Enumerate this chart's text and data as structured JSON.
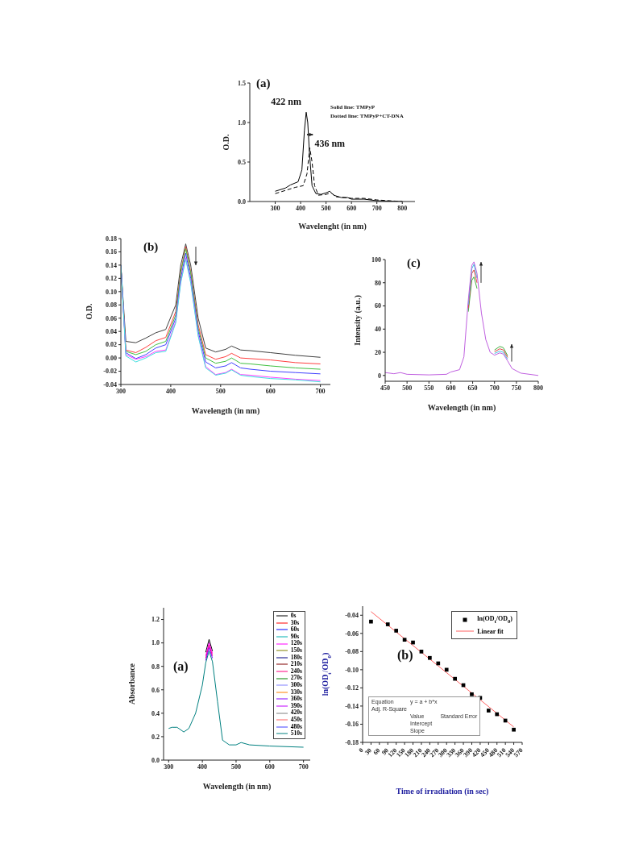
{
  "chart_data": [
    {
      "type": "line",
      "xlabel": "Wavelenght (in nm)",
      "ylabel": "O.D.",
      "xlim": [
        200,
        850
      ],
      "xticks": [
        300,
        400,
        500,
        600,
        700,
        800
      ],
      "ylim": [
        0,
        1.5
      ],
      "yticks": [
        {
          "value": 0,
          "label": "0.0"
        },
        0.5,
        {
          "value": 1,
          "label": "1.0"
        },
        1.5
      ],
      "annotations": [
        "(a)",
        {
          "text": "422 nm",
          "x": 422,
          "y": 1.13
        },
        {
          "text": "436 nm",
          "x": 436,
          "y": 0.68
        },
        "Solid line:  TMPyP",
        "Dotted line:  TMPyP+CT-DNA"
      ],
      "series": [
        {
          "color": "#000000",
          "line_style": "solid",
          "x": [
            300,
            340,
            360,
            390,
            405,
            415,
            422,
            428,
            435,
            445,
            460,
            480,
            500,
            515,
            530,
            560,
            585,
            600,
            650,
            700,
            800
          ],
          "values": [
            0.13,
            0.17,
            0.21,
            0.25,
            0.4,
            0.9,
            1.13,
            1.0,
            0.6,
            0.2,
            0.1,
            0.09,
            0.11,
            0.13,
            0.08,
            0.05,
            0.05,
            0.03,
            0.03,
            0.01,
            0.0
          ]
        },
        {
          "color": "#000000",
          "line_style": "dashed",
          "x": [
            300,
            340,
            380,
            410,
            425,
            436,
            445,
            455,
            470,
            500,
            520,
            540,
            600,
            650,
            700,
            800
          ],
          "values": [
            0.1,
            0.14,
            0.18,
            0.2,
            0.35,
            0.68,
            0.5,
            0.2,
            0.08,
            0.09,
            0.11,
            0.06,
            0.04,
            0.04,
            0.02,
            0.0
          ]
        }
      ]
    },
    {
      "type": "line",
      "xlabel": "Wavelength (in nm)",
      "ylabel": "O.D.",
      "xlim": [
        300,
        720
      ],
      "xticks": [
        300,
        400,
        500,
        600,
        700
      ],
      "ylim": [
        -0.04,
        0.18
      ],
      "yticks": [
        -0.04,
        -0.02,
        {
          "value": 0,
          "label": "0.00"
        },
        0.02,
        0.04,
        0.06,
        0.08,
        {
          "value": 0.1,
          "label": "0.10"
        },
        0.12,
        0.14,
        0.16,
        0.18
      ],
      "annotations": [
        "(b)"
      ],
      "x": [
        300,
        310,
        330,
        350,
        370,
        390,
        410,
        420,
        430,
        440,
        455,
        470,
        490,
        510,
        522,
        540,
        560,
        600,
        650,
        700
      ],
      "series": [
        {
          "color": "#404040",
          "values": [
            0.14,
            0.025,
            0.023,
            0.03,
            0.038,
            0.043,
            0.08,
            0.14,
            0.172,
            0.14,
            0.06,
            0.015,
            0.009,
            0.013,
            0.018,
            0.012,
            0.011,
            0.008,
            0.004,
            0.001
          ]
        },
        {
          "color": "#ff4040",
          "values": [
            0.14,
            0.012,
            0.008,
            0.016,
            0.026,
            0.031,
            0.07,
            0.13,
            0.168,
            0.13,
            0.05,
            0.005,
            -0.002,
            0.002,
            0.007,
            0.0,
            -0.001,
            -0.003,
            -0.007,
            -0.009
          ]
        },
        {
          "color": "#40c040",
          "values": [
            0.14,
            0.01,
            0.005,
            0.01,
            0.02,
            0.025,
            0.065,
            0.128,
            0.165,
            0.128,
            0.045,
            0.0,
            -0.008,
            -0.005,
            0.0,
            -0.008,
            -0.009,
            -0.012,
            -0.015,
            -0.017
          ]
        },
        {
          "color": "#4040ff",
          "values": [
            0.14,
            0.008,
            -0.001,
            0.005,
            0.015,
            0.02,
            0.06,
            0.12,
            0.158,
            0.12,
            0.04,
            -0.006,
            -0.015,
            -0.012,
            -0.007,
            -0.015,
            -0.017,
            -0.02,
            -0.022,
            -0.024
          ]
        },
        {
          "color": "#ff40ff",
          "values": [
            0.14,
            0.005,
            -0.002,
            0.002,
            0.01,
            0.012,
            0.055,
            0.115,
            0.151,
            0.115,
            0.035,
            -0.013,
            -0.025,
            -0.022,
            -0.017,
            -0.025,
            -0.026,
            -0.029,
            -0.032,
            -0.034
          ]
        },
        {
          "color": "#40e0e0",
          "values": [
            0.14,
            0.003,
            -0.006,
            0.0,
            0.008,
            0.01,
            0.053,
            0.113,
            0.149,
            0.113,
            0.033,
            -0.015,
            -0.026,
            -0.023,
            -0.018,
            -0.026,
            -0.028,
            -0.031,
            -0.033,
            -0.036
          ]
        }
      ]
    },
    {
      "type": "line",
      "xlabel": "Wavelength (in nm)",
      "ylabel": "Intensity (a.u.)",
      "xlim": [
        450,
        800
      ],
      "xticks": [
        450,
        500,
        550,
        600,
        650,
        700,
        750,
        800
      ],
      "ylim": [
        -5,
        100
      ],
      "yticks": [
        0,
        20,
        40,
        60,
        80,
        100
      ],
      "annotations": [
        "(c)"
      ],
      "x": [
        450,
        470,
        485,
        500,
        550,
        590,
        600,
        620,
        630,
        640,
        648,
        653,
        660,
        670,
        680,
        690,
        700,
        712,
        720,
        730,
        740,
        760,
        800
      ],
      "series": [
        {
          "color": "#40b040",
          "values": [
            null,
            null,
            null,
            null,
            null,
            null,
            null,
            null,
            null,
            55,
            82,
            85,
            75,
            null,
            null,
            null,
            22,
            25,
            24,
            17,
            null,
            null,
            null
          ]
        },
        {
          "color": "#e04040",
          "values": [
            null,
            null,
            null,
            null,
            null,
            null,
            null,
            null,
            null,
            58,
            88,
            91,
            80,
            null,
            null,
            null,
            20.5,
            23,
            22,
            15.5,
            null,
            null,
            null
          ]
        },
        {
          "color": "#40c0e0",
          "values": [
            null,
            null,
            null,
            null,
            null,
            null,
            null,
            null,
            null,
            61,
            92,
            96,
            84,
            null,
            null,
            null,
            19,
            21,
            20,
            14,
            null,
            null,
            null
          ]
        },
        {
          "color": "#c060e0",
          "values": [
            2.5,
            1.5,
            2.5,
            1,
            0.5,
            1,
            3,
            5,
            16,
            65,
            95,
            98,
            88,
            54,
            31,
            20,
            17.5,
            19.5,
            18.5,
            12.5,
            6,
            2,
            0
          ]
        }
      ]
    },
    {
      "type": "line",
      "xlabel": "Wavelength (in nm)",
      "ylabel": "Absorbance",
      "xlim": [
        285,
        720
      ],
      "xticks": [
        300,
        400,
        500,
        600,
        700
      ],
      "ylim": [
        0,
        1.3
      ],
      "yticks": [
        {
          "value": 0,
          "label": "0.0"
        },
        0.2,
        0.4,
        0.6,
        0.8,
        {
          "value": 1,
          "label": "1.0"
        },
        1.2
      ],
      "annotations": [
        "(a)"
      ],
      "legend": "top right",
      "x": [
        300,
        310,
        325,
        345,
        360,
        380,
        400,
        410,
        420,
        430,
        445,
        460,
        480,
        500,
        515,
        540,
        600,
        700
      ],
      "series": [
        {
          "name": "0s",
          "color": "#000000",
          "values": [
            null,
            null,
            null,
            null,
            null,
            null,
            null,
            0.92,
            1.03,
            0.93,
            null,
            null,
            null,
            null,
            null,
            null,
            null,
            null
          ]
        },
        {
          "name": "30s",
          "color": "#ff0000",
          "values": [
            null,
            null,
            null,
            null,
            null,
            null,
            null,
            null,
            null,
            null,
            null,
            null,
            null,
            null,
            null,
            null,
            null,
            null
          ]
        },
        {
          "name": "60s",
          "color": "#0000ff",
          "values": [
            null,
            null,
            null,
            null,
            null,
            null,
            null,
            null,
            null,
            null,
            null,
            null,
            null,
            null,
            null,
            null,
            null,
            null
          ]
        },
        {
          "name": "90s",
          "color": "#00b0b0",
          "values": [
            null,
            null,
            null,
            null,
            null,
            null,
            null,
            null,
            null,
            null,
            null,
            null,
            null,
            null,
            null,
            null,
            null,
            null
          ]
        },
        {
          "name": "120s",
          "color": "#ff00ff",
          "values": [
            null,
            null,
            null,
            null,
            null,
            null,
            null,
            0.89,
            1.0,
            0.91,
            null,
            null,
            null,
            null,
            null,
            null,
            null,
            null
          ]
        },
        {
          "name": "150s",
          "color": "#808000",
          "values": [
            null,
            null,
            null,
            null,
            null,
            null,
            null,
            null,
            null,
            null,
            null,
            null,
            null,
            null,
            null,
            null,
            null,
            null
          ]
        },
        {
          "name": "180s",
          "color": "#000080",
          "values": [
            null,
            null,
            null,
            null,
            null,
            null,
            null,
            null,
            null,
            null,
            null,
            null,
            null,
            null,
            null,
            null,
            null,
            null
          ]
        },
        {
          "name": "210s",
          "color": "#800000",
          "values": [
            null,
            null,
            null,
            null,
            null,
            null,
            null,
            null,
            null,
            null,
            null,
            null,
            null,
            null,
            null,
            null,
            null,
            null
          ]
        },
        {
          "name": "240s",
          "color": "#ff0080",
          "values": [
            null,
            null,
            null,
            null,
            null,
            null,
            null,
            0.87,
            0.98,
            0.89,
            null,
            null,
            null,
            null,
            null,
            null,
            null,
            null
          ]
        },
        {
          "name": "270s",
          "color": "#008000",
          "values": [
            null,
            null,
            null,
            null,
            null,
            null,
            null,
            null,
            null,
            null,
            null,
            null,
            null,
            null,
            null,
            null,
            null,
            null
          ]
        },
        {
          "name": "300s",
          "color": "#8080ff",
          "values": [
            null,
            null,
            null,
            null,
            null,
            null,
            null,
            null,
            null,
            null,
            null,
            null,
            null,
            null,
            null,
            null,
            null,
            null
          ]
        },
        {
          "name": "330s",
          "color": "#ff8000",
          "values": [
            null,
            null,
            null,
            null,
            null,
            null,
            null,
            null,
            null,
            null,
            null,
            null,
            null,
            null,
            null,
            null,
            null,
            null
          ]
        },
        {
          "name": "360s",
          "color": "#8000ff",
          "values": [
            null,
            null,
            null,
            null,
            null,
            null,
            null,
            0.85,
            0.96,
            0.87,
            null,
            null,
            null,
            null,
            null,
            null,
            null,
            null
          ]
        },
        {
          "name": "390s",
          "color": "#c000ff",
          "values": [
            null,
            null,
            null,
            null,
            null,
            null,
            null,
            null,
            null,
            null,
            null,
            null,
            null,
            null,
            null,
            null,
            null,
            null
          ]
        },
        {
          "name": "420s",
          "color": "#808080",
          "values": [
            null,
            null,
            null,
            null,
            null,
            null,
            null,
            null,
            null,
            null,
            null,
            null,
            null,
            null,
            null,
            null,
            null,
            null
          ]
        },
        {
          "name": "450s",
          "color": "#ff6060",
          "values": [
            null,
            null,
            null,
            null,
            null,
            null,
            null,
            null,
            null,
            null,
            null,
            null,
            null,
            null,
            null,
            null,
            null,
            null
          ]
        },
        {
          "name": "480s",
          "color": "#4040ff",
          "values": [
            null,
            null,
            null,
            null,
            null,
            null,
            null,
            null,
            null,
            null,
            null,
            null,
            null,
            null,
            null,
            null,
            null,
            null
          ]
        },
        {
          "name": "510s",
          "color": "#008080",
          "values": [
            0.27,
            0.28,
            0.28,
            0.24,
            0.27,
            0.4,
            0.64,
            0.83,
            0.93,
            0.84,
            0.5,
            0.17,
            0.13,
            0.13,
            0.15,
            0.13,
            0.12,
            0.11
          ]
        }
      ]
    },
    {
      "type": "scatter",
      "xlabel": "Time of irradiation (in sec)",
      "ylabel": "ln(OD$_{t}$/OD$_{0}$)",
      "xlim": [
        0,
        570
      ],
      "xticks": [
        0,
        30,
        60,
        90,
        120,
        150,
        180,
        210,
        240,
        270,
        300,
        330,
        360,
        390,
        420,
        450,
        480,
        510,
        540,
        570
      ],
      "ylim": [
        -0.18,
        -0.03
      ],
      "yticks": [
        -0.18,
        -0.16,
        -0.14,
        -0.12,
        {
          "value": -0.1,
          "label": "-0.10"
        },
        -0.08,
        -0.06,
        -0.04
      ],
      "annotations": [
        "(b)",
        "Equation",
        "y = a + b*x",
        "Adj. R-Square",
        "Value",
        "Standard Error",
        "Intercept",
        "Slope"
      ],
      "legend": "top right",
      "series": [
        {
          "name": "ln(OD$_{t}$/OD$_{0}$)",
          "marker": "square",
          "color": "#000000",
          "x": [
            30,
            90,
            120,
            150,
            180,
            210,
            240,
            270,
            300,
            330,
            360,
            390,
            420,
            450,
            480,
            510,
            540
          ],
          "values": [
            -0.047,
            -0.05,
            -0.057,
            -0.067,
            -0.07,
            -0.08,
            -0.087,
            -0.093,
            -0.1,
            -0.11,
            -0.117,
            -0.127,
            -0.131,
            -0.145,
            -0.149,
            -0.156,
            -0.166
          ]
        },
        {
          "name": "Linear fit",
          "type": "line",
          "color": "#ff6060",
          "x": [
            30,
            540
          ],
          "values": [
            -0.036,
            -0.163
          ]
        }
      ]
    }
  ]
}
